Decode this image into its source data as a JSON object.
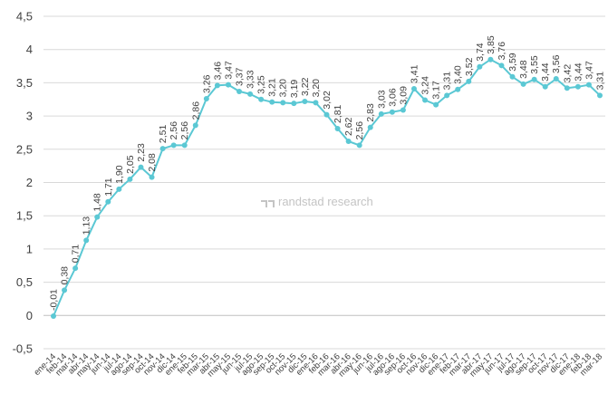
{
  "chart_data": {
    "type": "line",
    "title": "",
    "xlabel": "",
    "ylabel": "",
    "ylim": [
      -0.5,
      4.5
    ],
    "y_ticks": [
      "-0,5",
      "0",
      "0,5",
      "1",
      "1,5",
      "2",
      "2,5",
      "3",
      "3,5",
      "4",
      "4,5"
    ],
    "y_tick_values": [
      -0.5,
      0,
      0.5,
      1,
      1.5,
      2,
      2.5,
      3,
      3.5,
      4,
      4.5
    ],
    "grid": true,
    "legend": "none",
    "watermark": "randstad research",
    "line_color": "#5bc8d4",
    "categories": [
      "ene-14",
      "feb-14",
      "mar-14",
      "abr-14",
      "may-14",
      "jun-14",
      "jul-14",
      "ago-14",
      "sep-14",
      "oct-14",
      "nov-14",
      "dic-14",
      "ene-15",
      "feb-15",
      "mar-15",
      "abr-15",
      "may-15",
      "jun-15",
      "jul-15",
      "ago-15",
      "sep-15",
      "oct-15",
      "nov-15",
      "dic-15",
      "ene-16",
      "feb-16",
      "mar-16",
      "abr-16",
      "may-16",
      "jun-16",
      "jul-16",
      "ago-16",
      "sep-16",
      "oct-16",
      "nov-16",
      "dic-16",
      "ene-17",
      "feb-17",
      "mar-17",
      "abr-17",
      "may-17",
      "jun-17",
      "jul-17",
      "ago-17",
      "sep-17",
      "oct-17",
      "nov-17",
      "dic-17",
      "ene-18",
      "feb-18",
      "mar-18"
    ],
    "series": [
      {
        "values": [
          -0.01,
          0.38,
          0.71,
          1.13,
          1.48,
          1.71,
          1.9,
          2.05,
          2.23,
          2.08,
          2.51,
          2.56,
          2.56,
          2.86,
          3.26,
          3.46,
          3.47,
          3.37,
          3.33,
          3.25,
          3.21,
          3.2,
          3.19,
          3.22,
          3.2,
          3.02,
          2.81,
          2.62,
          2.56,
          2.83,
          3.03,
          3.06,
          3.09,
          3.41,
          3.24,
          3.17,
          3.31,
          3.4,
          3.52,
          3.74,
          3.85,
          3.76,
          3.59,
          3.48,
          3.55,
          3.44,
          3.56,
          3.42,
          3.44,
          3.47,
          3.31
        ],
        "labels": [
          "-0,01",
          "0,38",
          "0,71",
          "1,13",
          "1,48",
          "1,71",
          "1,90",
          "2,05",
          "2,23",
          "2,08",
          "2,51",
          "2,56",
          "2,56",
          "2,86",
          "3,26",
          "3,46",
          "3,47",
          "3,37",
          "3,33",
          "3,25",
          "3,21",
          "3,20",
          "3,19",
          "3,22",
          "3,20",
          "3,02",
          "2,81",
          "2,62",
          "2,56",
          "2,83",
          "3,03",
          "3,06",
          "3,09",
          "3,41",
          "3,24",
          "3,17",
          "3,31",
          "3,40",
          "3,52",
          "3,74",
          "3,85",
          "3,76",
          "3,59",
          "3,48",
          "3,55",
          "3,44",
          "3,56",
          "3,42",
          "3,44",
          "3,47",
          "3,31"
        ]
      }
    ]
  }
}
